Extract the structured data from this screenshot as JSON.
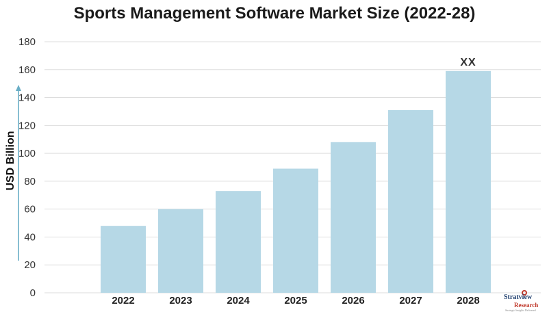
{
  "chart_data": {
    "type": "bar",
    "title": "Sports Management Software Market Size (2022-28)",
    "xlabel": "",
    "ylabel": "USD Billion",
    "categories": [
      "2022",
      "2023",
      "2024",
      "2025",
      "2026",
      "2027",
      "2028"
    ],
    "values": [
      48,
      60,
      73,
      89,
      108,
      131,
      159
    ],
    "ylim": [
      0,
      180
    ],
    "yticks": [
      "0",
      "20",
      "40",
      "60",
      "80",
      "100",
      "120",
      "140",
      "160",
      "180"
    ],
    "annotations": [
      {
        "category": "2028",
        "text": "XX"
      }
    ],
    "grid": true,
    "legend": "none",
    "bar_color": "#b6d8e6",
    "grid_color": "#dddddd",
    "axis_arrow_color": "#6aaec6"
  },
  "logo": {
    "main": "Stratview",
    "sub": "Research",
    "tagline": "Strategic Insights Delivered"
  }
}
